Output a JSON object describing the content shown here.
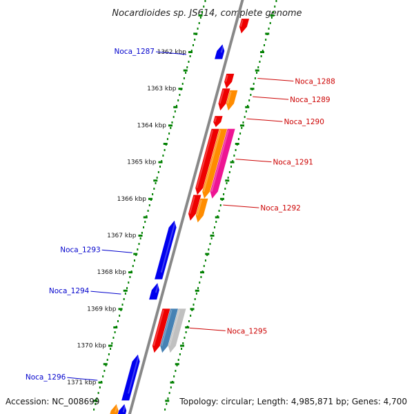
{
  "title": "Nocardioides sp. JS614, complete genome",
  "footer": {
    "accession": "Accession: NC_008699",
    "topology": "Topology: circular; Length: 4,985,871 bp; Genes: 4,700"
  },
  "colors": {
    "forward": "#ee0000",
    "reverse": "#0000ee",
    "orange": "#ff8c00",
    "magenta": "#ee1493",
    "steel": "#4682b4",
    "silver": "#c0c0c0",
    "tick": "#008000",
    "backbone": "#888888"
  },
  "kbp_ticks": [
    {
      "label": "1362 kbp",
      "kbp": 1362
    },
    {
      "label": "1363 kbp",
      "kbp": 1363
    },
    {
      "label": "1364 kbp",
      "kbp": 1364
    },
    {
      "label": "1365 kbp",
      "kbp": 1365
    },
    {
      "label": "1366 kbp",
      "kbp": 1366
    },
    {
      "label": "1367 kbp",
      "kbp": 1367
    },
    {
      "label": "1368 kbp",
      "kbp": 1368
    },
    {
      "label": "1369 kbp",
      "kbp": 1369
    },
    {
      "label": "1370 kbp",
      "kbp": 1370
    },
    {
      "label": "1371 kbp",
      "kbp": 1371
    }
  ],
  "genes": [
    {
      "strand": "+",
      "track": 1,
      "start": 1361.1,
      "end": 1361.5,
      "color": "forward"
    },
    {
      "strand": "-",
      "track": 1,
      "start": 1361.8,
      "end": 1362.2,
      "color": "reverse",
      "label": "Noca_1287"
    },
    {
      "strand": "+",
      "track": 1,
      "start": 1362.6,
      "end": 1363.0,
      "color": "forward",
      "label": "Noca_1288"
    },
    {
      "strand": "+",
      "track": 1,
      "start": 1363.0,
      "end": 1363.6,
      "color": "forward",
      "label": "Noca_1289"
    },
    {
      "strand": "+",
      "track": 2,
      "start": 1363.05,
      "end": 1363.6,
      "color": "orange"
    },
    {
      "strand": "+",
      "track": 1,
      "start": 1363.75,
      "end": 1364.05,
      "color": "forward",
      "label": "Noca_1290"
    },
    {
      "strand": "+",
      "track": 1,
      "start": 1364.1,
      "end": 1365.9,
      "color": "forward",
      "label": "Noca_1291"
    },
    {
      "strand": "+",
      "track": 2,
      "start": 1364.1,
      "end": 1366.0,
      "color": "orange"
    },
    {
      "strand": "+",
      "track": 3,
      "start": 1364.1,
      "end": 1366.0,
      "color": "magenta"
    },
    {
      "strand": "+",
      "track": 1,
      "start": 1365.9,
      "end": 1366.6,
      "color": "forward",
      "label": "Noca_1292"
    },
    {
      "strand": "+",
      "track": 2,
      "start": 1366.0,
      "end": 1366.65,
      "color": "orange"
    },
    {
      "strand": "-",
      "track": 1,
      "start": 1366.6,
      "end": 1368.2,
      "color": "reverse",
      "label": "Noca_1293"
    },
    {
      "strand": "-",
      "track": 1,
      "start": 1368.3,
      "end": 1368.75,
      "color": "reverse",
      "label": "Noca_1294"
    },
    {
      "strand": "+",
      "track": 1,
      "start": 1369.0,
      "end": 1370.2,
      "color": "forward",
      "label": "Noca_1295"
    },
    {
      "strand": "+",
      "track": 2,
      "start": 1369.0,
      "end": 1370.2,
      "color": "steel"
    },
    {
      "strand": "+",
      "track": 3,
      "start": 1369.0,
      "end": 1370.2,
      "color": "silver"
    },
    {
      "strand": "-",
      "track": 1,
      "start": 1370.25,
      "end": 1371.5,
      "color": "reverse",
      "label": "Noca_1296"
    },
    {
      "strand": "-",
      "track": 2,
      "start": 1371.6,
      "end": 1372.0,
      "color": "orange"
    },
    {
      "strand": "-",
      "track": 1,
      "start": 1371.6,
      "end": 1372.0,
      "color": "reverse"
    }
  ]
}
